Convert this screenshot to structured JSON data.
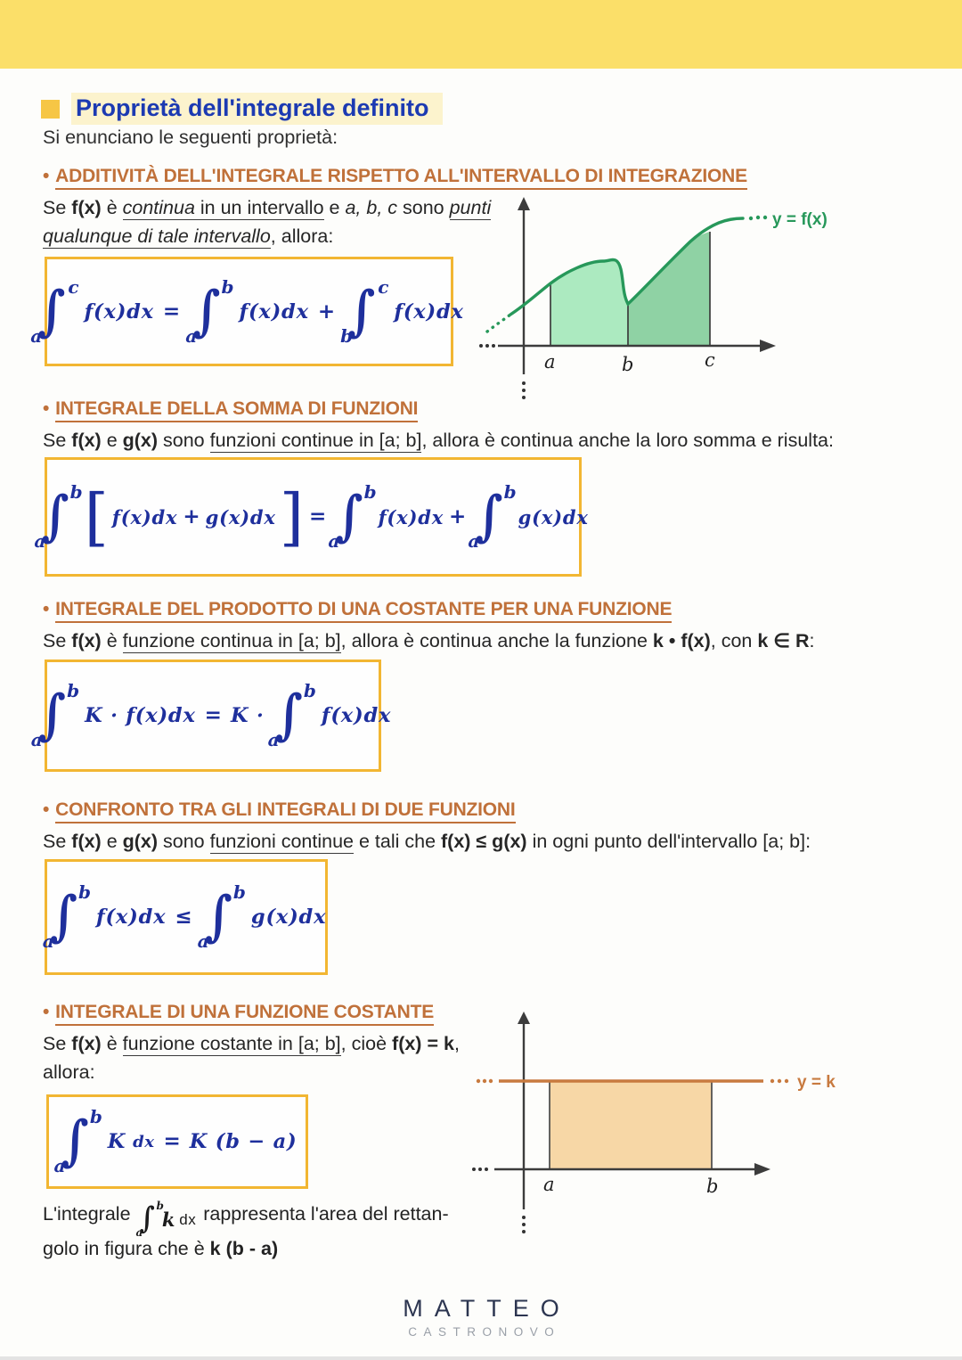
{
  "page": {
    "title": "Proprietà dell'integrale definito",
    "intro": "Si enunciano le seguenti proprietà:"
  },
  "colors": {
    "band_yellow": "#fbdf69",
    "title_blue": "#1c3ab2",
    "title_highlight": "#fcf3cd",
    "heading_orange": "#c0713a",
    "box_border": "#f2b632",
    "ink_blue": "#1e2f9c",
    "curve_green": "#27985a",
    "fill_green_light": "#aceac0",
    "fill_green_dark": "#8fd2a4",
    "line_orange": "#c87a3f",
    "fill_orange": "#f7d7a6"
  },
  "sections": [
    {
      "bullet": "•",
      "heading": "ADDITIVITÀ DELL'INTEGRALE RISPETTO ALL'INTERVALLO DI INTEGRAZIONE",
      "body": [
        {
          "v": "Se "
        },
        {
          "v": "f(x)",
          "b": true
        },
        {
          "v": " è "
        },
        {
          "v": "continua",
          "i": true,
          "u": true
        },
        {
          "v": " in un intervallo",
          "u": true
        },
        {
          "v": " e "
        },
        {
          "v": "a, b, c",
          "i": true
        },
        {
          "v": " sono "
        },
        {
          "v": "punti qualunque di tale intervallo",
          "i": true,
          "u": true
        },
        {
          "v": ", allora:"
        }
      ],
      "formula": [
        {
          "t": "int",
          "up": "c",
          "lo": "a"
        },
        {
          "t": "txt",
          "v": "f(x)dx"
        },
        {
          "t": "op",
          "v": "="
        },
        {
          "t": "int",
          "up": "b",
          "lo": "a"
        },
        {
          "t": "txt",
          "v": "f(x)dx"
        },
        {
          "t": "op",
          "v": "+"
        },
        {
          "t": "int",
          "up": "c",
          "lo": "b"
        },
        {
          "t": "txt",
          "v": "f(x)dx"
        }
      ]
    },
    {
      "bullet": "•",
      "heading": "INTEGRALE DELLA SOMMA DI FUNZIONI",
      "body": [
        {
          "v": "Se "
        },
        {
          "v": "f(x)",
          "b": true
        },
        {
          "v": " e "
        },
        {
          "v": "g(x)",
          "b": true
        },
        {
          "v": " sono "
        },
        {
          "v": "funzioni continue in [a; b]",
          "u": true
        },
        {
          "v": ", allora è continua anche la loro somma e risulta:"
        }
      ],
      "formula": [
        {
          "t": "int",
          "up": "b",
          "lo": "a"
        },
        {
          "t": "br",
          "v": "["
        },
        {
          "t": "txt",
          "v": "f(x)dx"
        },
        {
          "t": "op",
          "v": "+"
        },
        {
          "t": "txt",
          "v": "g(x)dx"
        },
        {
          "t": "br",
          "v": "]"
        },
        {
          "t": "op",
          "v": "="
        },
        {
          "t": "int",
          "up": "b",
          "lo": "a"
        },
        {
          "t": "txt",
          "v": "f(x)dx"
        },
        {
          "t": "op",
          "v": "+"
        },
        {
          "t": "int",
          "up": "b",
          "lo": "a"
        },
        {
          "t": "txt",
          "v": "g(x)dx"
        }
      ]
    },
    {
      "bullet": "•",
      "heading": "INTEGRALE DEL PRODOTTO DI UNA COSTANTE PER UNA FUNZIONE",
      "body": [
        {
          "v": "Se "
        },
        {
          "v": "f(x)",
          "b": true
        },
        {
          "v": " è "
        },
        {
          "v": "funzione continua in [a; b]",
          "u": true
        },
        {
          "v": ", allora è continua anche la funzione "
        },
        {
          "v": "k • f(x)",
          "b": true
        },
        {
          "v": ", con "
        },
        {
          "v": "k ∈ R",
          "b": true
        },
        {
          "v": ":"
        }
      ],
      "formula": [
        {
          "t": "int",
          "up": "b",
          "lo": "a"
        },
        {
          "t": "txt",
          "v": "K · f(x)dx"
        },
        {
          "t": "op",
          "v": "="
        },
        {
          "t": "txt",
          "v": "K ·"
        },
        {
          "t": "int",
          "up": "b",
          "lo": "a"
        },
        {
          "t": "txt",
          "v": "f(x)dx"
        }
      ]
    },
    {
      "bullet": "•",
      "heading": "CONFRONTO TRA GLI INTEGRALI DI DUE FUNZIONI",
      "body": [
        {
          "v": "Se "
        },
        {
          "v": "f(x)",
          "b": true
        },
        {
          "v": " e "
        },
        {
          "v": "g(x)",
          "b": true
        },
        {
          "v": " sono "
        },
        {
          "v": "funzioni continue",
          "u": true
        },
        {
          "v": " e tali che "
        },
        {
          "v": "f(x) ≤ g(x)",
          "b": true
        },
        {
          "v": " in ogni punto dell'intervallo [a; b]:"
        }
      ],
      "formula": [
        {
          "t": "int",
          "up": "b",
          "lo": "a"
        },
        {
          "t": "txt",
          "v": "f(x)dx"
        },
        {
          "t": "op",
          "v": "≤"
        },
        {
          "t": "int",
          "up": "b",
          "lo": "a"
        },
        {
          "t": "txt",
          "v": "g(x)dx"
        }
      ]
    },
    {
      "bullet": "•",
      "heading": "INTEGRALE DI UNA FUNZIONE COSTANTE",
      "body": [
        {
          "v": "Se "
        },
        {
          "v": "f(x)",
          "b": true
        },
        {
          "v": " è "
        },
        {
          "v": "funzione costante in [a; b]",
          "u": true
        },
        {
          "v": ", cioè "
        },
        {
          "v": "f(x) = k",
          "b": true
        },
        {
          "v": ", allora:"
        }
      ],
      "formula": [
        {
          "t": "int",
          "up": "b",
          "lo": "a"
        },
        {
          "t": "txt",
          "v": "K"
        },
        {
          "t": "sm",
          "v": "dx"
        },
        {
          "t": "op",
          "v": "="
        },
        {
          "t": "txt",
          "v": "K (b − a)"
        }
      ]
    }
  ],
  "graph1": {
    "curve_label": "y = f(x)",
    "label_a": "a",
    "label_b": "b",
    "label_c": "c"
  },
  "graph2": {
    "line_label": "y = k",
    "label_a": "a",
    "label_b": "b"
  },
  "note": {
    "pre": "L'integrale",
    "formula": [
      {
        "t": "int",
        "up": "b",
        "lo": "a"
      },
      {
        "t": "txt",
        "v": "k"
      },
      {
        "t": "sm",
        "v": "dx"
      }
    ],
    "line1_post": "rappresenta l'area del rettan-",
    "line2": "golo in figura che è ",
    "line2_bold": "k (b - a)"
  },
  "footer": {
    "name": "MATTEO",
    "surname": "CASTRONOVO"
  }
}
